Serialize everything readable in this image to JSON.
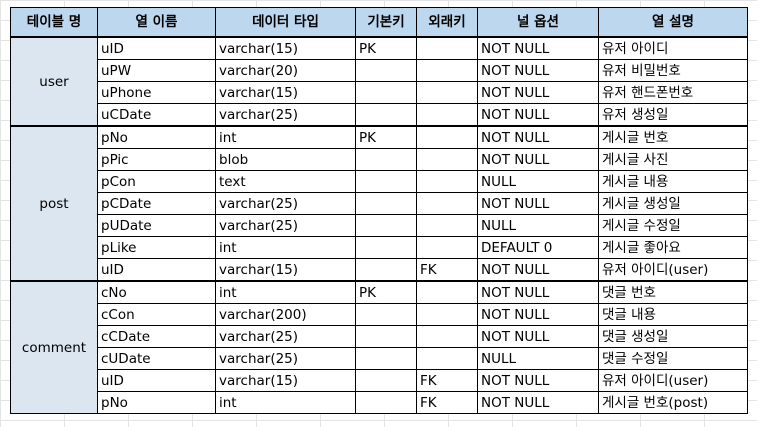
{
  "columns": [
    "테이블 명",
    "열 이름",
    "데이터 타입",
    "기본키",
    "외래키",
    "널 옵션",
    "열 설명"
  ],
  "tables": [
    {
      "name": "user",
      "rows": [
        {
          "col": "uID",
          "type": "varchar(15)",
          "pk": "PK",
          "fk": "",
          "null": "NOT NULL",
          "desc": "유저 아이디"
        },
        {
          "col": "uPW",
          "type": "varchar(20)",
          "pk": "",
          "fk": "",
          "null": "NOT NULL",
          "desc": "유저 비밀번호"
        },
        {
          "col": "uPhone",
          "type": "varchar(15)",
          "pk": "",
          "fk": "",
          "null": "NOT NULL",
          "desc": "유저 핸드폰번호"
        },
        {
          "col": "uCDate",
          "type": "varchar(25)",
          "pk": "",
          "fk": "",
          "null": "NOT NULL",
          "desc": "유저 생성일"
        }
      ]
    },
    {
      "name": "post",
      "rows": [
        {
          "col": "pNo",
          "type": "int",
          "pk": "PK",
          "fk": "",
          "null": "NOT NULL",
          "desc": "게시글 번호"
        },
        {
          "col": "pPic",
          "type": "blob",
          "pk": "",
          "fk": "",
          "null": "NOT NULL",
          "desc": "게시글 사진"
        },
        {
          "col": "pCon",
          "type": "text",
          "pk": "",
          "fk": "",
          "null": "NULL",
          "desc": "게시글 내용"
        },
        {
          "col": "pCDate",
          "type": "varchar(25)",
          "pk": "",
          "fk": "",
          "null": "NOT NULL",
          "desc": "게시글 생성일"
        },
        {
          "col": "pUDate",
          "type": "varchar(25)",
          "pk": "",
          "fk": "",
          "null": "NULL",
          "desc": "게시글 수정일"
        },
        {
          "col": "pLike",
          "type": "int",
          "pk": "",
          "fk": "",
          "null": "DEFAULT 0",
          "desc": "게시글 좋아요"
        },
        {
          "col": "uID",
          "type": "varchar(15)",
          "pk": "",
          "fk": "FK",
          "null": "NOT NULL",
          "desc": "유저 아이디(user)"
        }
      ]
    },
    {
      "name": "comment",
      "rows": [
        {
          "col": "cNo",
          "type": "int",
          "pk": "PK",
          "fk": "",
          "null": "NOT NULL",
          "desc": "댓글 번호"
        },
        {
          "col": "cCon",
          "type": "varchar(200)",
          "pk": "",
          "fk": "",
          "null": "NOT NULL",
          "desc": "댓글 내용"
        },
        {
          "col": "cCDate",
          "type": "varchar(25)",
          "pk": "",
          "fk": "",
          "null": "NOT NULL",
          "desc": "댓글 생성일"
        },
        {
          "col": "cUDate",
          "type": "varchar(25)",
          "pk": "",
          "fk": "",
          "null": "NULL",
          "desc": "댓글 수정일"
        },
        {
          "col": "uID",
          "type": "varchar(15)",
          "pk": "",
          "fk": "FK",
          "null": "NOT NULL",
          "desc": "유저 아이디(user)"
        },
        {
          "col": "pNo",
          "type": "int",
          "pk": "",
          "fk": "FK",
          "null": "NOT NULL",
          "desc": "게시글 번호(post)"
        }
      ]
    }
  ],
  "colors": {
    "header_bg": "#bdd7ee",
    "group_bg": "#dce6f1",
    "gridline": "#e3e3e3"
  }
}
